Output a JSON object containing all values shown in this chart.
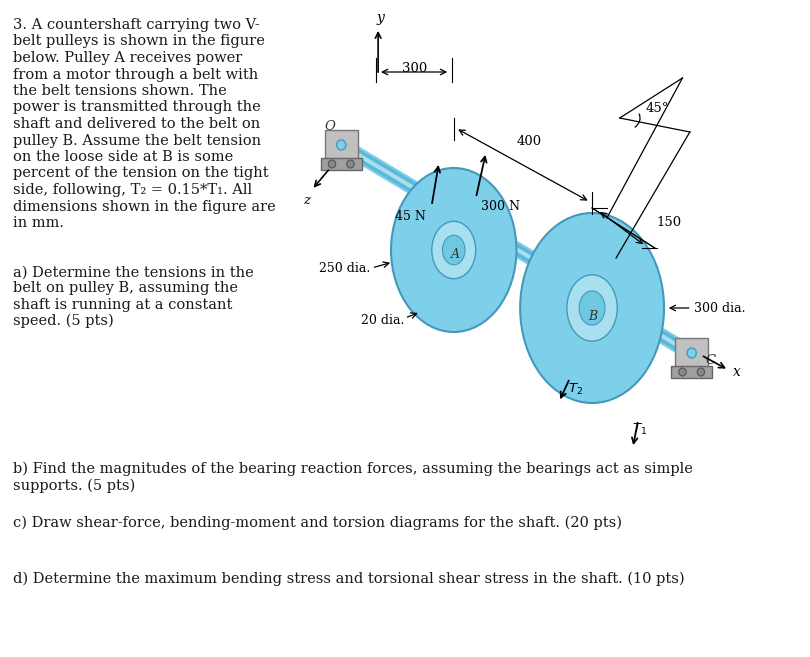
{
  "bg_color": "#ffffff",
  "text_color": "#1a1a1a",
  "problem_text": [
    "3. A countershaft carrying two V-",
    "belt pulleys is shown in the figure",
    "below. Pulley A receives power",
    "from a motor through a belt with",
    "the belt tensions shown. The",
    "power is transmitted through the",
    "shaft and delivered to the belt on",
    "pulley B. Assume the belt tension",
    "on the loose side at B is some",
    "percent of the tension on the tight",
    "side, following, T₂ = 0.15*T₁. All",
    "dimensions shown in the figure are",
    "in mm."
  ],
  "part_a": "a) Determine the tensions in the\nbelt on pulley B, assuming the\nshaft is running at a constant\nspeed. (5 pts)",
  "part_b": "b) Find the magnitudes of the bearing reaction forces, assuming the bearings act as simple\nsupports. (5 pts)",
  "part_c": "c) Draw shear-force, bending-moment and torsion diagrams for the shaft. (20 pts)",
  "part_d": "d) Determine the maximum bending stress and torsional shear stress in the shaft. (10 pts)",
  "pulley_color": "#7ecfea",
  "pulley_color_light": "#a8e0f0",
  "pulley_color_mid": "#6ec8e0",
  "shaft_color": "#7ecfea",
  "shaft_color_mid": "#5ab8d8",
  "shaft_color_highlight": "#aaddee",
  "bearing_color": "#c0c0c0",
  "bearing_dark": "#888888"
}
